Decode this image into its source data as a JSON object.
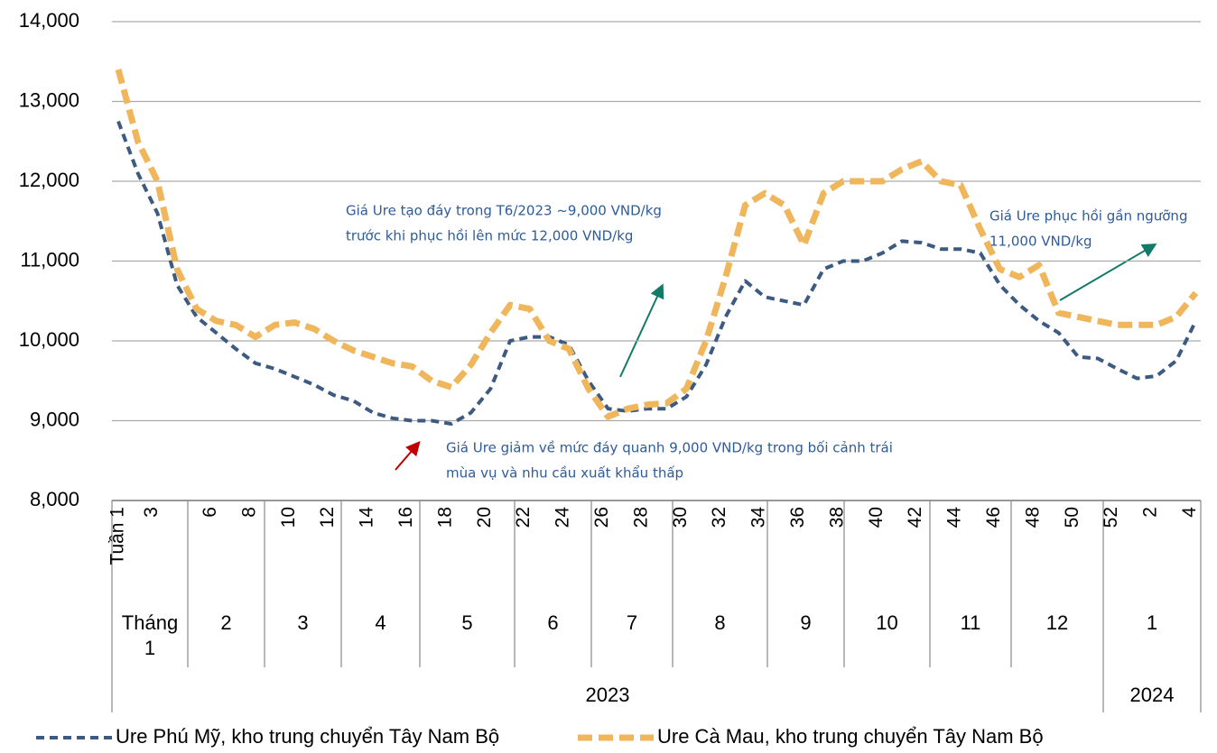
{
  "chart_data": {
    "type": "line",
    "categories": [
      "Tuần 1",
      null,
      "3",
      null,
      null,
      "6",
      null,
      "8",
      null,
      "10",
      null,
      "12",
      null,
      "14",
      null,
      "16",
      null,
      "18",
      null,
      "20",
      null,
      "22",
      null,
      "24",
      null,
      "26",
      null,
      "28",
      null,
      "30",
      null,
      "32",
      null,
      "34",
      null,
      "36",
      null,
      "38",
      null,
      "40",
      null,
      "42",
      null,
      "44",
      null,
      "46",
      null,
      "48",
      null,
      "50",
      null,
      "52",
      null,
      "2",
      null,
      "4"
    ],
    "months": [
      "Tháng 1",
      "2",
      "3",
      "4",
      "5",
      "6",
      "7",
      "8",
      "9",
      "10",
      "11",
      "12",
      "1"
    ],
    "years": [
      "2023",
      "2024"
    ],
    "series": [
      {
        "name": "Ure Phú Mỹ, kho trung chuyển Tây Nam Bộ",
        "color": "#3d5a80",
        "dash": "9,6",
        "width": 4,
        "values": [
          12750,
          12100,
          11600,
          10700,
          10300,
          10100,
          9900,
          9720,
          9650,
          9550,
          9450,
          9320,
          9250,
          9100,
          9030,
          9000,
          9000,
          8960,
          9100,
          9400,
          10000,
          10050,
          10050,
          9950,
          9500,
          9150,
          9120,
          9150,
          9150,
          9300,
          9700,
          10300,
          10750,
          10550,
          10500,
          10450,
          10900,
          11000,
          11000,
          11100,
          11250,
          11230,
          11150,
          11150,
          11100,
          10700,
          10450,
          10250,
          10100,
          9800,
          9780,
          9650,
          9530,
          9560,
          9750,
          10250
        ]
      },
      {
        "name": "Ure Cà Mau, kho trung chuyển Tây Nam Bộ",
        "color": "#f0b65c",
        "dash": "16,7",
        "width": 7,
        "values": [
          13400,
          12500,
          12000,
          10900,
          10400,
          10250,
          10200,
          10050,
          10200,
          10230,
          10150,
          10000,
          9880,
          9800,
          9720,
          9680,
          9500,
          9420,
          9700,
          10100,
          10450,
          10400,
          10000,
          9900,
          9400,
          9050,
          9150,
          9200,
          9220,
          9400,
          10000,
          10800,
          11700,
          11850,
          11700,
          11200,
          11850,
          12000,
          12000,
          12000,
          12150,
          12250,
          12000,
          11950,
          11400,
          10900,
          10800,
          10950,
          10350,
          10300,
          10250,
          10200,
          10200,
          10200,
          10300,
          10600
        ]
      }
    ],
    "ylim": [
      8000,
      14000
    ],
    "yticks": [
      {
        "value": 8000,
        "label": "8,000"
      },
      {
        "value": 9000,
        "label": "9,000"
      },
      {
        "value": 10000,
        "label": "10,000"
      },
      {
        "value": 11000,
        "label": "11,000"
      },
      {
        "value": 12000,
        "label": "12,000"
      },
      {
        "value": 13000,
        "label": "13,000"
      },
      {
        "value": 14000,
        "label": "14,000"
      }
    ],
    "grid": true,
    "annotations": [
      {
        "lines": [
          "Giá Ure tạo đáy trong T6/2023 ~9,000 VND/kg",
          "trước khi phục hồi lên mức 12,000 VND/kg"
        ]
      },
      {
        "lines": [
          "Giá Ure giảm về mức đáy quanh 9,000 VND/kg trong bối cảnh trái",
          "mùa vụ và nhu cầu xuất khẩu thấp"
        ]
      },
      {
        "lines": [
          "Giá Ure phục hồi gần ngưỡng",
          "11,000 VND/kg"
        ]
      }
    ]
  }
}
